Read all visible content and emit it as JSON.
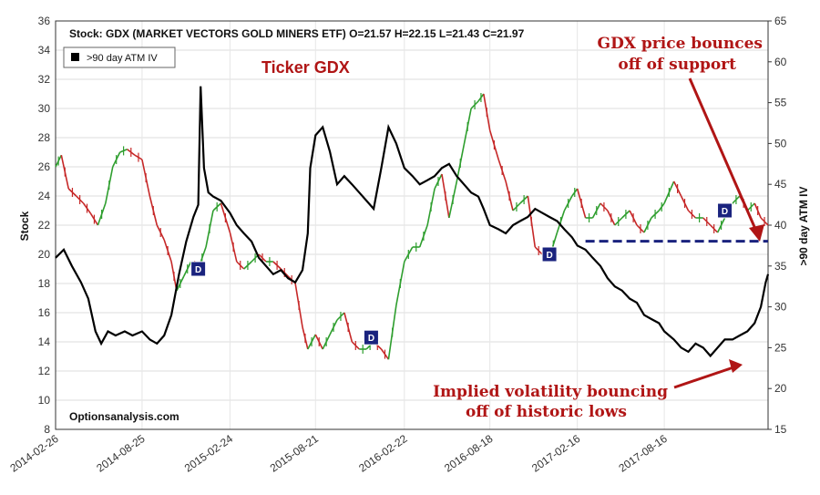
{
  "chart_data": {
    "type": "line",
    "header": "Stock: GDX (MARKET VECTORS GOLD MINERS ETF) O=21.57  H=22.15  L=21.43  C=21.97",
    "legend": ">90 day ATM IV",
    "source": "Optionsanalysis.com",
    "ylabel_left": "Stock",
    "ylabel_right": ">90 day ATM IV",
    "ylim_left": [
      8,
      36
    ],
    "ylim_right": [
      15,
      65
    ],
    "yticks_left": [
      "8",
      "10",
      "12",
      "14",
      "16",
      "18",
      "20",
      "22",
      "24",
      "26",
      "28",
      "30",
      "32",
      "34",
      "36"
    ],
    "yticks_right": [
      "15",
      "20",
      "25",
      "30",
      "35",
      "40",
      "45",
      "50",
      "55",
      "60",
      "65"
    ],
    "x_ticks": [
      "2014-02-26",
      "2014-08-25",
      "2015-02-24",
      "2015-08-21",
      "2016-02-22",
      "2016-08-18",
      "2017-02-16",
      "2017-08-16"
    ],
    "x_range": [
      "2014-02-26",
      "2018-03-20"
    ],
    "grid": true,
    "series": [
      {
        "name": "Stock",
        "values": [
          [
            "2014-02-26",
            26.0
          ],
          [
            "2014-03-10",
            26.8
          ],
          [
            "2014-03-25",
            24.5
          ],
          [
            "2014-04-10",
            24.0
          ],
          [
            "2014-04-25",
            23.5
          ],
          [
            "2014-05-10",
            22.8
          ],
          [
            "2014-05-25",
            22.0
          ],
          [
            "2014-06-10",
            23.5
          ],
          [
            "2014-06-25",
            26.0
          ],
          [
            "2014-07-10",
            27.0
          ],
          [
            "2014-07-25",
            27.2
          ],
          [
            "2014-08-10",
            26.8
          ],
          [
            "2014-08-25",
            26.5
          ],
          [
            "2014-09-10",
            24.0
          ],
          [
            "2014-09-25",
            22.0
          ],
          [
            "2014-10-10",
            21.0
          ],
          [
            "2014-10-25",
            19.5
          ],
          [
            "2014-11-05",
            17.5
          ],
          [
            "2014-11-20",
            18.5
          ],
          [
            "2014-12-05",
            19.5
          ],
          [
            "2014-12-20",
            19.0
          ],
          [
            "2015-01-05",
            20.5
          ],
          [
            "2015-01-20",
            23.0
          ],
          [
            "2015-02-05",
            23.5
          ],
          [
            "2015-02-24",
            21.5
          ],
          [
            "2015-03-10",
            19.5
          ],
          [
            "2015-03-25",
            19.0
          ],
          [
            "2015-04-10",
            19.5
          ],
          [
            "2015-04-25",
            20.0
          ],
          [
            "2015-05-10",
            19.5
          ],
          [
            "2015-05-25",
            19.5
          ],
          [
            "2015-06-10",
            19.0
          ],
          [
            "2015-06-25",
            18.5
          ],
          [
            "2015-07-10",
            18.0
          ],
          [
            "2015-07-25",
            15.0
          ],
          [
            "2015-08-05",
            13.5
          ],
          [
            "2015-08-21",
            14.5
          ],
          [
            "2015-09-05",
            13.5
          ],
          [
            "2015-09-20",
            14.5
          ],
          [
            "2015-10-05",
            15.5
          ],
          [
            "2015-10-20",
            16.0
          ],
          [
            "2015-11-05",
            14.0
          ],
          [
            "2015-11-20",
            13.5
          ],
          [
            "2015-12-05",
            13.5
          ],
          [
            "2015-12-20",
            14.0
          ],
          [
            "2016-01-05",
            13.5
          ],
          [
            "2016-01-20",
            12.8
          ],
          [
            "2016-02-05",
            16.5
          ],
          [
            "2016-02-22",
            19.5
          ],
          [
            "2016-03-10",
            20.5
          ],
          [
            "2016-03-25",
            20.5
          ],
          [
            "2016-04-10",
            22.0
          ],
          [
            "2016-04-25",
            24.5
          ],
          [
            "2016-05-10",
            25.5
          ],
          [
            "2016-05-25",
            22.5
          ],
          [
            "2016-06-10",
            25.0
          ],
          [
            "2016-06-25",
            27.5
          ],
          [
            "2016-07-10",
            30.0
          ],
          [
            "2016-07-25",
            30.5
          ],
          [
            "2016-08-05",
            31.0
          ],
          [
            "2016-08-18",
            28.5
          ],
          [
            "2016-09-05",
            26.5
          ],
          [
            "2016-09-20",
            25.0
          ],
          [
            "2016-10-05",
            23.0
          ],
          [
            "2016-10-20",
            23.5
          ],
          [
            "2016-11-05",
            24.0
          ],
          [
            "2016-11-20",
            20.5
          ],
          [
            "2016-12-05",
            20.0
          ],
          [
            "2016-12-20",
            19.8
          ],
          [
            "2017-01-05",
            21.5
          ],
          [
            "2017-01-20",
            23.0
          ],
          [
            "2017-02-05",
            24.0
          ],
          [
            "2017-02-16",
            24.5
          ],
          [
            "2017-03-05",
            22.5
          ],
          [
            "2017-03-20",
            22.5
          ],
          [
            "2017-04-05",
            23.5
          ],
          [
            "2017-04-20",
            23.0
          ],
          [
            "2017-05-05",
            22.0
          ],
          [
            "2017-05-20",
            22.5
          ],
          [
            "2017-06-05",
            23.0
          ],
          [
            "2017-06-20",
            22.0
          ],
          [
            "2017-07-05",
            21.5
          ],
          [
            "2017-07-20",
            22.5
          ],
          [
            "2017-08-05",
            23.0
          ],
          [
            "2017-08-16",
            23.5
          ],
          [
            "2017-09-05",
            25.0
          ],
          [
            "2017-09-20",
            24.0
          ],
          [
            "2017-10-05",
            23.0
          ],
          [
            "2017-10-20",
            22.5
          ],
          [
            "2017-11-05",
            22.5
          ],
          [
            "2017-11-20",
            22.0
          ],
          [
            "2017-12-05",
            21.5
          ],
          [
            "2017-12-20",
            22.5
          ],
          [
            "2018-01-05",
            23.5
          ],
          [
            "2018-01-20",
            24.0
          ],
          [
            "2018-02-05",
            23.0
          ],
          [
            "2018-02-20",
            23.5
          ],
          [
            "2018-03-05",
            22.5
          ],
          [
            "2018-03-20",
            22.0
          ]
        ]
      },
      {
        "name": ">90 day ATM IV",
        "values": [
          [
            "2014-02-26",
            36.0
          ],
          [
            "2014-03-15",
            37.0
          ],
          [
            "2014-04-01",
            35.0
          ],
          [
            "2014-04-20",
            33.0
          ],
          [
            "2014-05-05",
            31.0
          ],
          [
            "2014-05-20",
            27.0
          ],
          [
            "2014-06-01",
            25.5
          ],
          [
            "2014-06-15",
            27.0
          ],
          [
            "2014-07-01",
            26.5
          ],
          [
            "2014-07-20",
            27.0
          ],
          [
            "2014-08-05",
            26.5
          ],
          [
            "2014-08-25",
            27.0
          ],
          [
            "2014-09-10",
            26.0
          ],
          [
            "2014-09-25",
            25.5
          ],
          [
            "2014-10-10",
            26.5
          ],
          [
            "2014-10-25",
            29.0
          ],
          [
            "2014-11-10",
            34.0
          ],
          [
            "2014-11-25",
            38.0
          ],
          [
            "2014-12-10",
            41.0
          ],
          [
            "2014-12-20",
            42.5
          ],
          [
            "2014-12-25",
            57.0
          ],
          [
            "2015-01-01",
            47.0
          ],
          [
            "2015-01-10",
            44.0
          ],
          [
            "2015-01-20",
            43.5
          ],
          [
            "2015-02-05",
            43.0
          ],
          [
            "2015-02-24",
            41.5
          ],
          [
            "2015-03-10",
            40.0
          ],
          [
            "2015-03-25",
            39.0
          ],
          [
            "2015-04-10",
            38.0
          ],
          [
            "2015-04-25",
            36.0
          ],
          [
            "2015-05-10",
            35.0
          ],
          [
            "2015-05-25",
            34.0
          ],
          [
            "2015-06-10",
            34.5
          ],
          [
            "2015-06-25",
            33.5
          ],
          [
            "2015-07-10",
            33.0
          ],
          [
            "2015-07-25",
            34.5
          ],
          [
            "2015-08-05",
            39.0
          ],
          [
            "2015-08-10",
            47.0
          ],
          [
            "2015-08-21",
            51.0
          ],
          [
            "2015-09-05",
            52.0
          ],
          [
            "2015-09-20",
            49.0
          ],
          [
            "2015-10-05",
            45.0
          ],
          [
            "2015-10-20",
            46.0
          ],
          [
            "2015-11-05",
            45.0
          ],
          [
            "2015-11-20",
            44.0
          ],
          [
            "2015-12-05",
            43.0
          ],
          [
            "2015-12-20",
            42.0
          ],
          [
            "2016-01-05",
            47.0
          ],
          [
            "2016-01-20",
            52.0
          ],
          [
            "2016-02-05",
            50.0
          ],
          [
            "2016-02-22",
            47.0
          ],
          [
            "2016-03-10",
            46.0
          ],
          [
            "2016-03-25",
            45.0
          ],
          [
            "2016-04-10",
            45.5
          ],
          [
            "2016-04-25",
            46.0
          ],
          [
            "2016-05-10",
            47.0
          ],
          [
            "2016-05-25",
            47.5
          ],
          [
            "2016-06-10",
            46.0
          ],
          [
            "2016-06-25",
            45.0
          ],
          [
            "2016-07-10",
            44.0
          ],
          [
            "2016-07-25",
            43.5
          ],
          [
            "2016-08-05",
            42.0
          ],
          [
            "2016-08-18",
            40.0
          ],
          [
            "2016-09-05",
            39.5
          ],
          [
            "2016-09-20",
            39.0
          ],
          [
            "2016-10-05",
            40.0
          ],
          [
            "2016-10-20",
            40.5
          ],
          [
            "2016-11-05",
            41.0
          ],
          [
            "2016-11-20",
            42.0
          ],
          [
            "2016-12-05",
            41.5
          ],
          [
            "2016-12-20",
            41.0
          ],
          [
            "2017-01-05",
            40.5
          ],
          [
            "2017-01-20",
            39.5
          ],
          [
            "2017-02-05",
            38.5
          ],
          [
            "2017-02-16",
            37.5
          ],
          [
            "2017-03-05",
            37.0
          ],
          [
            "2017-03-20",
            36.0
          ],
          [
            "2017-04-05",
            35.0
          ],
          [
            "2017-04-20",
            33.5
          ],
          [
            "2017-05-05",
            32.5
          ],
          [
            "2017-05-20",
            32.0
          ],
          [
            "2017-06-05",
            31.0
          ],
          [
            "2017-06-20",
            30.5
          ],
          [
            "2017-07-05",
            29.0
          ],
          [
            "2017-07-20",
            28.5
          ],
          [
            "2017-08-05",
            28.0
          ],
          [
            "2017-08-16",
            27.0
          ],
          [
            "2017-09-05",
            26.0
          ],
          [
            "2017-09-20",
            25.0
          ],
          [
            "2017-10-05",
            24.5
          ],
          [
            "2017-10-20",
            25.5
          ],
          [
            "2017-11-05",
            25.0
          ],
          [
            "2017-11-20",
            24.0
          ],
          [
            "2017-12-05",
            25.0
          ],
          [
            "2017-12-20",
            26.0
          ],
          [
            "2018-01-05",
            26.0
          ],
          [
            "2018-01-20",
            26.5
          ],
          [
            "2018-02-05",
            27.0
          ],
          [
            "2018-02-20",
            28.0
          ],
          [
            "2018-03-05",
            30.0
          ],
          [
            "2018-03-15",
            33.0
          ],
          [
            "2018-03-20",
            34.0
          ]
        ]
      }
    ],
    "support_level": 20.9,
    "dividend_markers": [
      {
        "date": "2014-12-20",
        "value": 19.0,
        "label": "D"
      },
      {
        "date": "2015-12-15",
        "value": 14.3,
        "label": "D"
      },
      {
        "date": "2016-12-20",
        "value": 20.0,
        "label": "D"
      },
      {
        "date": "2017-12-20",
        "value": 23.0,
        "label": "D"
      }
    ],
    "annotations": [
      {
        "text": "Ticker GDX"
      },
      {
        "text": "GDX price bounces"
      },
      {
        "text": "off of support"
      },
      {
        "text": "Implied volatility bouncing"
      },
      {
        "text": "off of historic lows"
      }
    ]
  }
}
